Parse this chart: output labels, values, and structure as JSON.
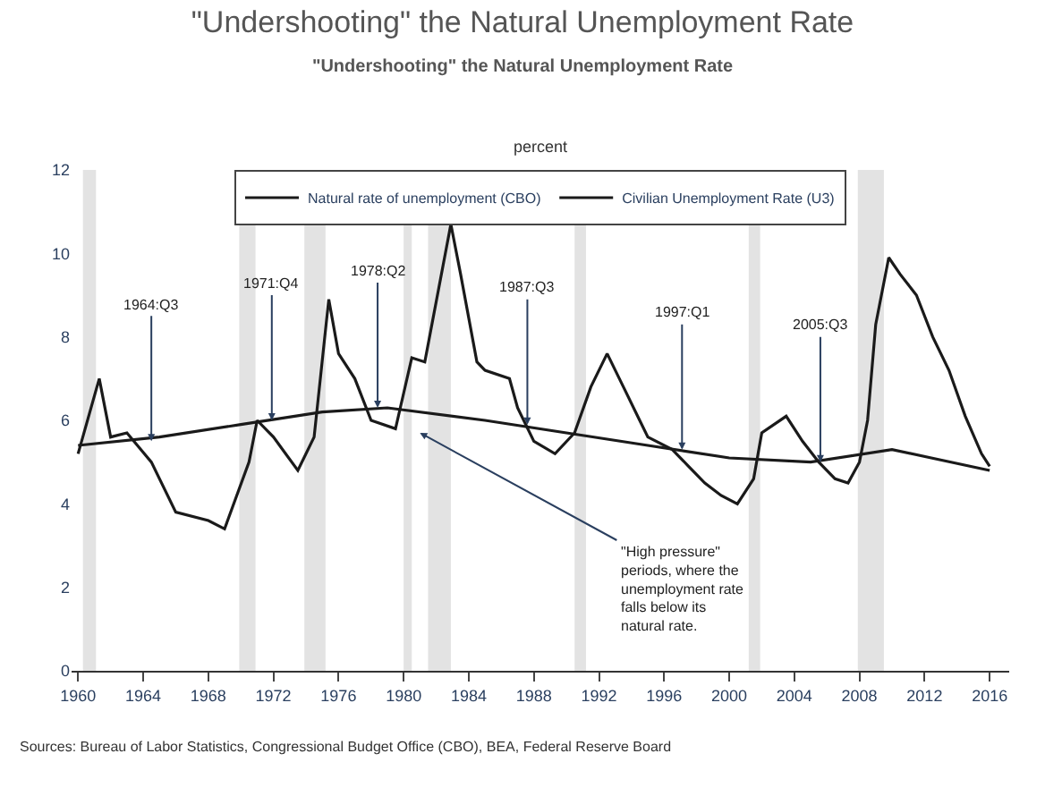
{
  "chart_data": {
    "type": "line",
    "title": "\"Undershooting\" the Natural Unemployment Rate",
    "subtitle": "\"Undershooting\" the Natural Unemployment Rate",
    "ylabel": "percent",
    "series": [
      {
        "name": "Natural rate of unemployment (CBO)",
        "color": "#1a1a1a",
        "x": [
          1960,
          1965,
          1970,
          1975,
          1979,
          1985,
          1990,
          1995,
          2000,
          2005,
          2010,
          2016
        ],
        "values": [
          5.4,
          5.6,
          5.9,
          6.2,
          6.3,
          6.0,
          5.7,
          5.4,
          5.1,
          5.0,
          5.3,
          4.8
        ]
      },
      {
        "name": "Civilian Unemployment Rate (U3)",
        "color": "#1a1a1a",
        "x": [
          1960,
          1961.3,
          1962,
          1963,
          1964.5,
          1966,
          1968,
          1969,
          1970.5,
          1971,
          1972,
          1973.5,
          1974.5,
          1975.4,
          1976,
          1977,
          1978,
          1979.5,
          1980.5,
          1981.3,
          1982.9,
          1983.5,
          1984.5,
          1985,
          1986.5,
          1987,
          1988,
          1989.3,
          1990.5,
          1991.5,
          1992.5,
          1993.5,
          1994.5,
          1995,
          1996.5,
          1997.5,
          1998.5,
          1999.5,
          2000.5,
          2001.5,
          2002,
          2003.5,
          2004.5,
          2005.5,
          2006.5,
          2007.3,
          2008,
          2008.5,
          2009,
          2009.8,
          2010.5,
          2011.5,
          2012.5,
          2013.5,
          2014.5,
          2015.5,
          2016
        ],
        "values": [
          5.2,
          7.0,
          5.6,
          5.7,
          5.0,
          3.8,
          3.6,
          3.4,
          5.0,
          6.0,
          5.6,
          4.8,
          5.6,
          8.9,
          7.6,
          7.0,
          6.0,
          5.8,
          7.5,
          7.4,
          10.7,
          9.5,
          7.4,
          7.2,
          7.0,
          6.3,
          5.5,
          5.2,
          5.7,
          6.8,
          7.6,
          6.8,
          6.0,
          5.6,
          5.3,
          4.9,
          4.5,
          4.2,
          4.0,
          4.6,
          5.7,
          6.1,
          5.5,
          5.0,
          4.6,
          4.5,
          5.0,
          6.0,
          8.3,
          9.9,
          9.5,
          9.0,
          8.0,
          7.2,
          6.1,
          5.2,
          4.9
        ]
      }
    ],
    "xlim": [
      1959.6,
      2017.2
    ],
    "xticks": [
      1960,
      1964,
      1968,
      1972,
      1976,
      1980,
      1984,
      1988,
      1992,
      1996,
      2000,
      2004,
      2008,
      2012,
      2016
    ],
    "ylim": [
      0,
      12
    ],
    "yticks": [
      0,
      2,
      4,
      6,
      8,
      10,
      12
    ],
    "bands": [
      {
        "axis": "x",
        "from": 1960.3,
        "to": 1961.1,
        "color": "#c8c8c8"
      },
      {
        "axis": "x",
        "from": 1969.9,
        "to": 1970.9,
        "color": "#c8c8c8"
      },
      {
        "axis": "x",
        "from": 1973.9,
        "to": 1975.2,
        "color": "#c8c8c8"
      },
      {
        "axis": "x",
        "from": 1980.0,
        "to": 1980.5,
        "color": "#c8c8c8"
      },
      {
        "axis": "x",
        "from": 1981.5,
        "to": 1982.9,
        "color": "#c8c8c8"
      },
      {
        "axis": "x",
        "from": 1990.5,
        "to": 1991.2,
        "color": "#c8c8c8"
      },
      {
        "axis": "x",
        "from": 2001.2,
        "to": 2001.9,
        "color": "#c8c8c8"
      },
      {
        "axis": "x",
        "from": 2007.9,
        "to": 2009.5,
        "color": "#c8c8c8"
      }
    ],
    "annotations": [
      {
        "text": "1964:Q3",
        "x": 1964.5,
        "y": 5.5
      },
      {
        "text": "1971:Q4",
        "x": 1971.9,
        "y": 6.0
      },
      {
        "text": "1978:Q2",
        "x": 1978.4,
        "y": 6.3
      },
      {
        "text": "1987:Q3",
        "x": 1987.6,
        "y": 5.9
      },
      {
        "text": "1997:Q1",
        "x": 1997.1,
        "y": 5.3
      },
      {
        "text": "2005:Q3",
        "x": 2005.6,
        "y": 5.0
      },
      {
        "text": "\"High pressure\" periods, where the unemployment rate falls below its natural rate.",
        "x": 1981.0,
        "y": 5.7
      },
      "Sources: Bureau of Labor Statistics, Congressional Budget Office (CBO), BEA, Federal Reserve Board"
    ],
    "legend": "top",
    "grid": false,
    "marker": "none",
    "line_style": "solid"
  }
}
